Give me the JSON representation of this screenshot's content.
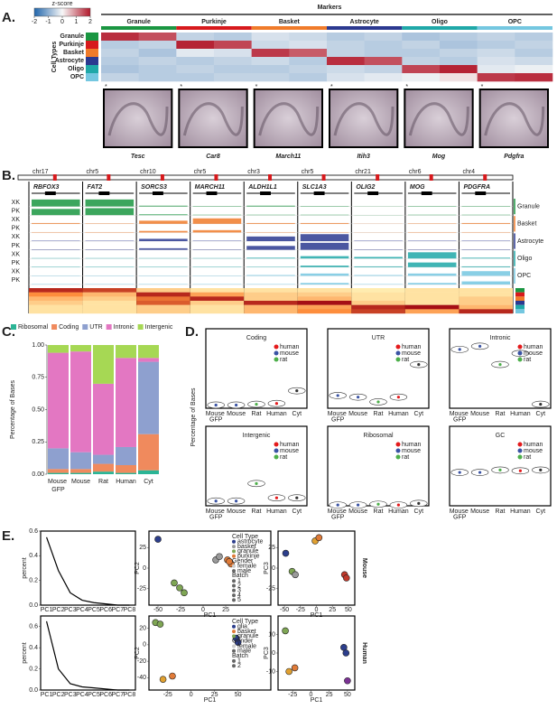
{
  "panel_letters": [
    "A.",
    "B.",
    "C.",
    "D.",
    "E."
  ],
  "panel_a": {
    "title": "Markers",
    "colorbar_label": "z-score",
    "colorbar_ticks": [
      -2,
      -1,
      0,
      1,
      2
    ],
    "cell_types_label": "Cell Types",
    "star": "*",
    "cell_types": [
      {
        "name": "Granule",
        "color": "#1a9641"
      },
      {
        "name": "Purkinje",
        "color": "#d7191c"
      },
      {
        "name": "Basket",
        "color": "#f07b2a"
      },
      {
        "name": "Astrocyte",
        "color": "#2b3990"
      },
      {
        "name": "Oligo",
        "color": "#1fa8a8"
      },
      {
        "name": "OPC",
        "color": "#74c7e0"
      }
    ],
    "heatmap": [
      [
        1.8,
        1.5,
        -0.5,
        -0.6,
        -0.3,
        -0.4,
        -0.6,
        -0.5,
        -0.7,
        -0.6,
        -0.5,
        -0.6
      ],
      [
        -0.6,
        -0.5,
        1.9,
        1.6,
        -0.4,
        -0.3,
        -0.5,
        -0.6,
        -0.5,
        -0.7,
        -0.6,
        -0.5
      ],
      [
        -0.5,
        -0.7,
        -0.2,
        -0.3,
        1.7,
        1.4,
        -0.5,
        -0.6,
        -0.6,
        -0.5,
        -0.4,
        -0.6
      ],
      [
        -0.6,
        -0.5,
        -0.6,
        -0.5,
        -0.4,
        -0.6,
        1.8,
        1.5,
        -0.5,
        -0.6,
        -0.3,
        -0.4
      ],
      [
        -0.7,
        -0.6,
        -0.5,
        -0.6,
        -0.6,
        -0.5,
        -0.4,
        -0.5,
        1.6,
        1.9,
        -0.2,
        -0.1
      ],
      [
        -0.5,
        -0.6,
        -0.6,
        -0.5,
        -0.5,
        -0.6,
        -0.3,
        -0.2,
        -0.1,
        0.2,
        1.7,
        1.8
      ]
    ],
    "genes": [
      {
        "name": "Tesc",
        "color": "#1a9641"
      },
      {
        "name": "Car8",
        "color": "#d7191c"
      },
      {
        "name": "March11",
        "color": "#f07b2a"
      },
      {
        "name": "Itih3",
        "color": "#2b3990"
      },
      {
        "name": "Mog",
        "color": "#1fa8a8"
      },
      {
        "name": "Pdgfra",
        "color": "#74c7e0"
      }
    ]
  },
  "panel_b": {
    "chromosomes": [
      "chr17",
      "chr5",
      "chr10",
      "chr5",
      "chr3",
      "chr5",
      "chr21",
      "chr6",
      "chr4"
    ],
    "genes": [
      "RBFOX3",
      "FAT2",
      "SORCS3",
      "MARCH11",
      "ALDH1L1",
      "SLC1A3",
      "OLIG2",
      "MOG",
      "PDGFRA"
    ],
    "track_labels": [
      "XK",
      "PK",
      "XK",
      "PK",
      "XK",
      "PK",
      "XK",
      "PK",
      "XK",
      "PK"
    ],
    "track_cell_types": [
      {
        "name": "Granule",
        "color": "#1a9641"
      },
      {
        "name": "Basket",
        "color": "#f07b2a"
      },
      {
        "name": "Astrocyte",
        "color": "#2b3990"
      },
      {
        "name": "Oligo",
        "color": "#1fa8a8"
      },
      {
        "name": "OPC",
        "color": "#74c7e0"
      }
    ],
    "signal": [
      [
        0.9,
        0.9,
        0.1,
        0.05,
        0.1,
        0.05,
        0.02,
        0.05,
        0.05
      ],
      [
        0.8,
        0.9,
        0.1,
        0.05,
        0.05,
        0.05,
        0.02,
        0.05,
        0.05
      ],
      [
        0.1,
        0.05,
        0.4,
        0.7,
        0.1,
        0.1,
        0.02,
        0.05,
        0.1
      ],
      [
        0.05,
        0.05,
        0.2,
        0.3,
        0.05,
        0.05,
        0.02,
        0.05,
        0.05
      ],
      [
        0.05,
        0.05,
        0.3,
        0.05,
        0.6,
        0.9,
        0.05,
        0.05,
        0.05
      ],
      [
        0.05,
        0.05,
        0.2,
        0.05,
        0.5,
        0.9,
        0.05,
        0.05,
        0.05
      ],
      [
        0.05,
        0.05,
        0.05,
        0.05,
        0.1,
        0.3,
        0.2,
        0.8,
        0.1
      ],
      [
        0.05,
        0.05,
        0.05,
        0.05,
        0.05,
        0.2,
        0.1,
        0.6,
        0.1
      ],
      [
        0.05,
        0.05,
        0.05,
        0.05,
        0.1,
        0.3,
        0.1,
        0.3,
        0.6
      ],
      [
        0.05,
        0.05,
        0.05,
        0.05,
        0.05,
        0.2,
        0.05,
        0.2,
        0.4
      ]
    ],
    "heatmap": [
      [
        0.9,
        0.8,
        0.2,
        0.1,
        0.1,
        0.1,
        0.05,
        0.1,
        0.1
      ],
      [
        0.5,
        0.3,
        0.9,
        0.4,
        0.2,
        0.2,
        0.1,
        0.1,
        0.1
      ],
      [
        0.3,
        0.2,
        0.6,
        0.9,
        0.2,
        0.3,
        0.1,
        0.1,
        0.2
      ],
      [
        0.2,
        0.1,
        0.7,
        0.2,
        0.9,
        1.0,
        0.2,
        0.1,
        0.2
      ],
      [
        0.1,
        0.1,
        0.2,
        0.1,
        0.3,
        0.4,
        0.9,
        1.0,
        0.3
      ],
      [
        0.1,
        0.1,
        0.2,
        0.1,
        0.3,
        0.5,
        0.8,
        0.4,
        0.9
      ]
    ],
    "heatmap_colors": [
      "#1a9641",
      "#d7191c",
      "#f07b2a",
      "#2b3990",
      "#1fa8a8",
      "#74c7e0"
    ]
  },
  "chart_data": [
    {
      "type": "bar",
      "stacked": true,
      "y_label": "Percentage of Bases",
      "categories": [
        "Mouse GFP",
        "Mouse",
        "Rat",
        "Human",
        "Cyt"
      ],
      "ylim": [
        0,
        1
      ],
      "yticks": [
        {
          "value": 0,
          "label": "0.00"
        },
        {
          "value": 0.25,
          "label": "0.25"
        },
        {
          "value": 0.5,
          "label": "0.50"
        },
        {
          "value": 0.75,
          "label": "0.75"
        },
        {
          "value": 1,
          "label": "1.00"
        }
      ],
      "series": [
        {
          "name": "Ribosomal",
          "color": "#2bb596",
          "values": [
            0.01,
            0.01,
            0.02,
            0.01,
            0.03
          ]
        },
        {
          "name": "Coding",
          "color": "#f08a5d",
          "values": [
            0.03,
            0.03,
            0.06,
            0.06,
            0.28
          ]
        },
        {
          "name": "UTR",
          "color": "#8ea0cf",
          "values": [
            0.16,
            0.13,
            0.07,
            0.14,
            0.56
          ]
        },
        {
          "name": "Intronic",
          "color": "#e377c2",
          "values": [
            0.74,
            0.78,
            0.55,
            0.69,
            0.03
          ]
        },
        {
          "name": "Intergenic",
          "color": "#a6d854",
          "values": [
            0.06,
            0.05,
            0.3,
            0.1,
            0.1
          ]
        }
      ]
    },
    {
      "type": "violin",
      "title": "Coding",
      "y_label": "Percentage of Bases",
      "categories": [
        "Mouse GFP",
        "Mouse",
        "Rat",
        "Human",
        "Cyt"
      ],
      "ylim": [
        0,
        1
      ],
      "values": [
        0.04,
        0.04,
        0.05,
        0.06,
        0.22
      ],
      "colors": [
        "#3a53a4",
        "#3a53a4",
        "#4daf4a",
        "#e41a1c",
        "#333333"
      ],
      "legend": [
        {
          "name": "human",
          "color": "#e41a1c"
        },
        {
          "name": "mouse",
          "color": "#3a53a4"
        },
        {
          "name": "rat",
          "color": "#4daf4a"
        }
      ]
    },
    {
      "type": "violin",
      "title": "UTR",
      "categories": [
        "Mouse GFP",
        "Mouse",
        "Rat",
        "Human",
        "Cyt"
      ],
      "ylim": [
        0,
        1
      ],
      "values": [
        0.16,
        0.14,
        0.08,
        0.14,
        0.55
      ],
      "colors": [
        "#3a53a4",
        "#3a53a4",
        "#4daf4a",
        "#e41a1c",
        "#333333"
      ],
      "legend": [
        {
          "name": "human",
          "color": "#e41a1c"
        },
        {
          "name": "mouse",
          "color": "#3a53a4"
        },
        {
          "name": "rat",
          "color": "#4daf4a"
        }
      ]
    },
    {
      "type": "violin",
      "title": "Intronic",
      "categories": [
        "Mouse GFP",
        "Mouse",
        "Rat",
        "Human",
        "Cyt"
      ],
      "ylim": [
        0,
        1
      ],
      "values": [
        0.74,
        0.78,
        0.55,
        0.69,
        0.05
      ],
      "colors": [
        "#3a53a4",
        "#3a53a4",
        "#4daf4a",
        "#e41a1c",
        "#333333"
      ],
      "legend": [
        {
          "name": "human",
          "color": "#e41a1c"
        },
        {
          "name": "mouse",
          "color": "#3a53a4"
        },
        {
          "name": "rat",
          "color": "#4daf4a"
        }
      ]
    },
    {
      "type": "violin",
      "title": "Intergenic",
      "categories": [
        "Mouse GFP",
        "Mouse",
        "Rat",
        "Human",
        "Cyt"
      ],
      "ylim": [
        0,
        1
      ],
      "values": [
        0.06,
        0.06,
        0.28,
        0.1,
        0.1
      ],
      "colors": [
        "#3a53a4",
        "#3a53a4",
        "#4daf4a",
        "#e41a1c",
        "#333333"
      ],
      "legend": [
        {
          "name": "human",
          "color": "#e41a1c"
        },
        {
          "name": "mouse",
          "color": "#3a53a4"
        },
        {
          "name": "rat",
          "color": "#4daf4a"
        }
      ]
    },
    {
      "type": "violin",
      "title": "Ribosomal",
      "categories": [
        "Mouse GFP",
        "Mouse",
        "Rat",
        "Human",
        "Cyt"
      ],
      "ylim": [
        0,
        1
      ],
      "values": [
        0.01,
        0.01,
        0.02,
        0.01,
        0.03
      ],
      "colors": [
        "#3a53a4",
        "#3a53a4",
        "#4daf4a",
        "#e41a1c",
        "#333333"
      ],
      "legend": [
        {
          "name": "human",
          "color": "#e41a1c"
        },
        {
          "name": "mouse",
          "color": "#3a53a4"
        },
        {
          "name": "rat",
          "color": "#4daf4a"
        }
      ]
    },
    {
      "type": "violin",
      "title": "GC",
      "categories": [
        "Mouse GFP",
        "Mouse",
        "Rat",
        "Human",
        "Cyt"
      ],
      "ylim": [
        0,
        1
      ],
      "values": [
        0.42,
        0.42,
        0.45,
        0.44,
        0.45
      ],
      "colors": [
        "#3a53a4",
        "#3a53a4",
        "#4daf4a",
        "#e41a1c",
        "#333333"
      ],
      "legend": [
        {
          "name": "human",
          "color": "#e41a1c"
        },
        {
          "name": "mouse",
          "color": "#3a53a4"
        },
        {
          "name": "rat",
          "color": "#4daf4a"
        }
      ]
    },
    {
      "type": "line",
      "group_label": "Mouse",
      "y_label": "percent",
      "categories": [
        "PC1",
        "PC2",
        "PC3",
        "PC4",
        "PC5",
        "PC6",
        "PC7",
        "PC8"
      ],
      "values": [
        0.55,
        0.28,
        0.1,
        0.04,
        0.02,
        0.01,
        0,
        0
      ],
      "ylim": [
        0,
        0.6
      ],
      "yticks": [
        {
          "value": 0,
          "label": "0.0"
        },
        {
          "value": 0.2,
          "label": "0.2"
        },
        {
          "value": 0.4,
          "label": "0.4"
        },
        {
          "value": 0.6,
          "label": "0.6"
        }
      ]
    },
    {
      "type": "scatter",
      "x_label": "PC1",
      "y_label": "PC2",
      "xlim": [
        -60,
        75
      ],
      "ylim": [
        -45,
        45
      ],
      "xticks": [
        -50,
        -25,
        0,
        25
      ],
      "yticks": [
        -25,
        0,
        25
      ],
      "x": [
        -50,
        -32,
        -26,
        -21,
        14,
        18,
        27,
        31,
        29
      ],
      "y": [
        35,
        -18,
        -24,
        -30,
        10,
        14,
        10,
        5,
        8
      ],
      "colors": [
        "#2c3e8c",
        "#7fa654",
        "#7fa654",
        "#7fa654",
        "#9a9a9a",
        "#9a9a9a",
        "#e07b39",
        "#e07b39",
        "#e07b39"
      ],
      "legend": [
        {
          "title": "Cell Type",
          "items": [
            {
              "name": "astrocyte",
              "color": "#2c3e8c"
            },
            {
              "name": "basket",
              "color": "#9a9a9a"
            },
            {
              "name": "granule",
              "color": "#7fa654"
            },
            {
              "name": "purkinje",
              "color": "#e07b39"
            }
          ]
        },
        {
          "title": "Gender",
          "items": [
            {
              "name": "female",
              "color": "#cccccc"
            },
            {
              "name": "male",
              "color": "#666666"
            }
          ]
        },
        {
          "title": "Batch",
          "items": [
            {
              "name": "1",
              "color": "#666666"
            },
            {
              "name": "2",
              "color": "#666666"
            },
            {
              "name": "3",
              "color": "#666666"
            },
            {
              "name": "4",
              "color": "#666666"
            },
            {
              "name": "5",
              "color": "#666666"
            }
          ]
        }
      ]
    },
    {
      "type": "scatter",
      "x_label": "PC1",
      "y_label": "PC3",
      "xlim": [
        -60,
        60
      ],
      "ylim": [
        -45,
        45
      ],
      "xticks": [
        -50,
        -25,
        0,
        25,
        50
      ],
      "yticks": [
        -25,
        0,
        25
      ],
      "x": [
        -48,
        -38,
        -33,
        -2,
        4,
        44,
        47
      ],
      "y": [
        18,
        -4,
        -8,
        33,
        37,
        -8,
        -12
      ],
      "colors": [
        "#2c3e8c",
        "#7fa654",
        "#9a9a9a",
        "#e0a030",
        "#e07b39",
        "#c0392b",
        "#c0392b"
      ]
    },
    {
      "type": "line",
      "group_label": "Human",
      "y_label": "percent",
      "categories": [
        "PC1",
        "PC2",
        "PC3",
        "PC4",
        "PC5",
        "PC6",
        "PC7",
        "PC8"
      ],
      "values": [
        0.65,
        0.2,
        0.06,
        0.03,
        0.02,
        0.01,
        0,
        0
      ],
      "ylim": [
        0,
        0.7
      ],
      "yticks": [
        {
          "value": 0,
          "label": "0.0"
        },
        {
          "value": 0.2,
          "label": "0.2"
        },
        {
          "value": 0.4,
          "label": "0.4"
        },
        {
          "value": 0.6,
          "label": "0.6"
        }
      ]
    },
    {
      "type": "scatter",
      "x_label": "PC1",
      "y_label": "PC2",
      "xlim": [
        -45,
        85
      ],
      "ylim": [
        -55,
        35
      ],
      "xticks": [
        -25,
        0,
        25,
        50
      ],
      "yticks": [
        -40,
        -20,
        0,
        20
      ],
      "x": [
        -38,
        -33,
        -30,
        -20,
        48,
        50
      ],
      "y": [
        27,
        25,
        -42,
        -38,
        8,
        3
      ],
      "colors": [
        "#7fa654",
        "#7fa654",
        "#e0a030",
        "#e07b39",
        "#2c3e8c",
        "#2c3e8c"
      ],
      "legend": [
        {
          "title": "Cell Type",
          "items": [
            {
              "name": "glia",
              "color": "#2c3e8c"
            },
            {
              "name": "basket",
              "color": "#e07b39"
            },
            {
              "name": "granule",
              "color": "#7fa654"
            }
          ]
        },
        {
          "title": "Gender",
          "items": [
            {
              "name": "female",
              "color": "#cccccc"
            },
            {
              "name": "male",
              "color": "#666666"
            }
          ]
        },
        {
          "title": "Batch",
          "items": [
            {
              "name": "1",
              "color": "#666666"
            },
            {
              "name": "2",
              "color": "#666666"
            }
          ]
        }
      ]
    },
    {
      "type": "scatter",
      "x_label": "PC1",
      "y_label": "PC3",
      "xlim": [
        -45,
        60
      ],
      "ylim": [
        -20,
        20
      ],
      "xticks": [
        -25,
        0,
        25,
        50
      ],
      "yticks": [
        -10,
        0,
        10
      ],
      "x": [
        -35,
        -30,
        -22,
        45,
        48,
        50
      ],
      "y": [
        12,
        -10,
        -8,
        3,
        0,
        -15
      ],
      "colors": [
        "#7fa654",
        "#e0a030",
        "#e07b39",
        "#2c3e8c",
        "#2c3e8c",
        "#7b3294"
      ]
    }
  ]
}
